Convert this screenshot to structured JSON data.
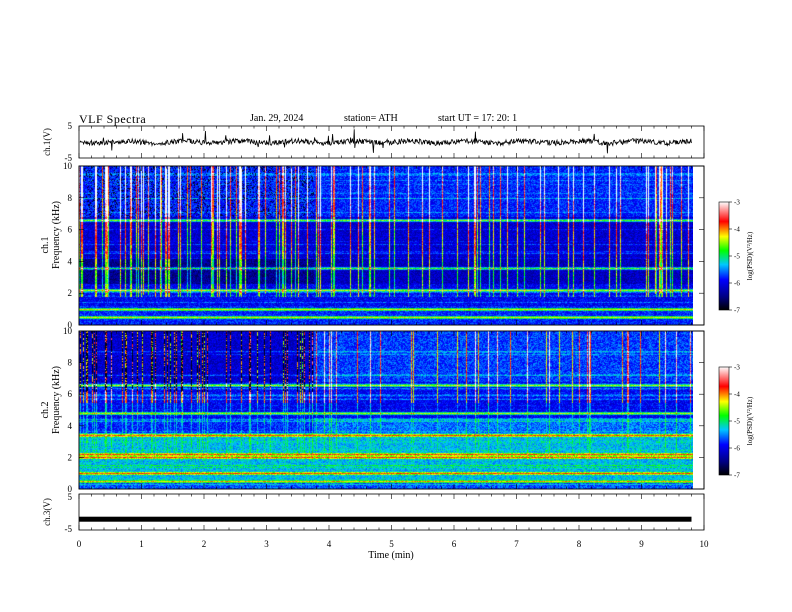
{
  "header": {
    "title": "VLF  Spectra",
    "date": "Jan. 29, 2024",
    "station": "station= ATH",
    "start": "start  UT  =    17: 20: 1"
  },
  "chart_data": [
    {
      "type": "line",
      "panel": "ch1-waveform",
      "ylabel": "ch.1(V)",
      "ylim": [
        -5,
        5
      ],
      "yticks": [
        "5",
        "-5"
      ],
      "xlim": [
        0,
        10
      ],
      "color": "#000000"
    },
    {
      "type": "heatmap",
      "panel": "ch1-spectrogram",
      "ylabel": [
        "ch.1",
        "Frequency  (kHz)"
      ],
      "ylim": [
        0,
        10
      ],
      "yticks": [
        "0",
        "2",
        "4",
        "6",
        "8",
        "10"
      ],
      "xlim": [
        0,
        10
      ],
      "data_extent_min": 9.8,
      "colorbar": {
        "label": "log(PSD)(V²/Hz)",
        "range": [
          -7,
          -3
        ],
        "ticks": [
          "-3",
          "-4",
          "-5",
          "-6",
          "-7"
        ]
      },
      "strong_lines_khz": [
        0.5,
        1.0,
        2.2,
        3.6,
        6.6
      ],
      "event_change_min": 3.75
    },
    {
      "type": "heatmap",
      "panel": "ch2-spectrogram",
      "ylabel": [
        "ch.2",
        "Frequency  (kHz)"
      ],
      "ylim": [
        0,
        10
      ],
      "yticks": [
        "0",
        "2",
        "4",
        "6",
        "8",
        "10"
      ],
      "xlim": [
        0,
        10
      ],
      "data_extent_min": 9.8,
      "colorbar": {
        "label": "log(PSD)(V²/Hz)",
        "range": [
          -7,
          -3
        ],
        "ticks": [
          "-3",
          "-4",
          "-5",
          "-6",
          "-7"
        ]
      },
      "strong_lines_khz": [
        0.5,
        1.0,
        2.0,
        2.2,
        3.4,
        4.8,
        6.6
      ],
      "event_change_min": 3.75
    },
    {
      "type": "line",
      "panel": "ch3-waveform",
      "ylabel": "ch.3(V)",
      "ylim": [
        -5,
        5
      ],
      "yticks": [
        "5",
        "-5"
      ],
      "xlim": [
        0,
        10
      ],
      "xlabel": "Time  (min)",
      "xticks": [
        "0",
        "1",
        "2",
        "3",
        "4",
        "5",
        "6",
        "7",
        "8",
        "9",
        "10"
      ],
      "constant_value": -2,
      "color": "#000000"
    }
  ]
}
